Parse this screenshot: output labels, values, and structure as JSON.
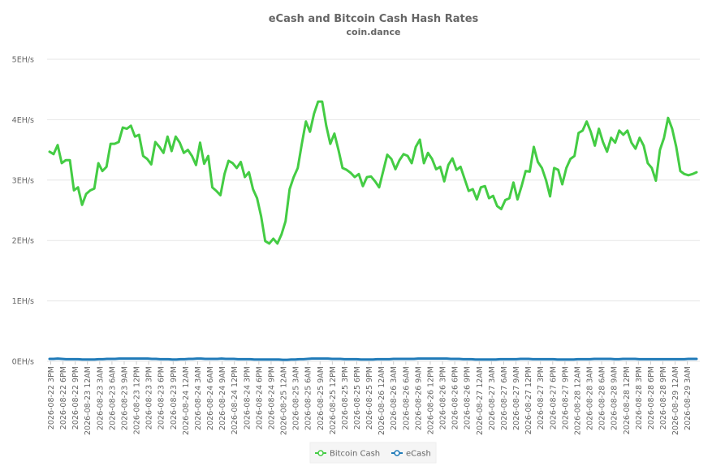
{
  "chart_data": {
    "type": "line",
    "title": "eCash and Bitcoin Cash Hash Rates",
    "subtitle": "coin.dance",
    "ylim": [
      0,
      5
    ],
    "y_ticks": [
      "0EH/s",
      "1EH/s",
      "2EH/s",
      "3EH/s",
      "4EH/s",
      "5EH/s"
    ],
    "grid": true,
    "legend_position": "bottom-center",
    "x_ticks": [
      "2026-08-22 3PM",
      "2026-08-22 6PM",
      "2026-08-22 9PM",
      "2026-08-23 12AM",
      "2026-08-23 3AM",
      "2026-08-23 6AM",
      "2026-08-23 9AM",
      "2026-08-23 12PM",
      "2026-08-23 3PM",
      "2026-08-23 6PM",
      "2026-08-23 9PM",
      "2026-08-24 12AM",
      "2026-08-24 3AM",
      "2026-08-24 6AM",
      "2026-08-24 9AM",
      "2026-08-24 12PM",
      "2026-08-24 3PM",
      "2026-08-24 6PM",
      "2026-08-24 9PM",
      "2026-08-25 12AM",
      "2026-08-25 3AM",
      "2026-08-25 6AM",
      "2026-08-25 9AM",
      "2026-08-25 12PM",
      "2026-08-25 3PM",
      "2026-08-25 6PM",
      "2026-08-25 9PM",
      "2026-08-26 12AM",
      "2026-08-26 3AM",
      "2026-08-26 6AM",
      "2026-08-26 9AM",
      "2026-08-26 12PM",
      "2026-08-26 3PM",
      "2026-08-26 6PM",
      "2026-08-26 9PM",
      "2026-08-27 12AM",
      "2026-08-27 3AM",
      "2026-08-27 6AM",
      "2026-08-27 9AM",
      "2026-08-27 12PM",
      "2026-08-27 3PM",
      "2026-08-27 6PM",
      "2026-08-27 9PM",
      "2026-08-28 12AM",
      "2026-08-28 3AM",
      "2026-08-28 6AM",
      "2026-08-28 9AM",
      "2026-08-28 12PM",
      "2026-08-28 3PM",
      "2026-08-28 6PM",
      "2026-08-28 9PM",
      "2026-08-29 12AM",
      "2026-08-29 3AM"
    ],
    "series": [
      {
        "name": "Bitcoin Cash",
        "color": "#44cc44",
        "values": [
          3.47,
          3.43,
          3.58,
          3.28,
          3.33,
          3.33,
          2.83,
          2.88,
          2.59,
          2.77,
          2.83,
          2.86,
          3.28,
          3.15,
          3.22,
          3.6,
          3.6,
          3.63,
          3.87,
          3.85,
          3.9,
          3.72,
          3.75,
          3.4,
          3.35,
          3.26,
          3.63,
          3.55,
          3.45,
          3.72,
          3.48,
          3.72,
          3.62,
          3.45,
          3.5,
          3.4,
          3.25,
          3.62,
          3.27,
          3.4,
          2.88,
          2.82,
          2.75,
          3.1,
          3.32,
          3.28,
          3.2,
          3.3,
          3.05,
          3.13,
          2.85,
          2.7,
          2.4,
          1.99,
          1.95,
          2.03,
          1.95,
          2.1,
          2.32,
          2.85,
          3.05,
          3.2,
          3.6,
          3.97,
          3.8,
          4.1,
          4.3,
          4.3,
          3.9,
          3.6,
          3.77,
          3.5,
          3.2,
          3.17,
          3.12,
          3.05,
          3.1,
          2.9,
          3.05,
          3.06,
          2.98,
          2.88,
          3.15,
          3.42,
          3.35,
          3.18,
          3.33,
          3.43,
          3.4,
          3.28,
          3.55,
          3.67,
          3.28,
          3.45,
          3.35,
          3.18,
          3.22,
          2.98,
          3.25,
          3.36,
          3.17,
          3.22,
          3.02,
          2.82,
          2.85,
          2.68,
          2.88,
          2.9,
          2.7,
          2.74,
          2.57,
          2.52,
          2.67,
          2.7,
          2.96,
          2.68,
          2.9,
          3.15,
          3.14,
          3.55,
          3.3,
          3.2,
          3.0,
          2.73,
          3.2,
          3.17,
          2.93,
          3.2,
          3.35,
          3.4,
          3.78,
          3.82,
          3.97,
          3.8,
          3.57,
          3.85,
          3.63,
          3.47,
          3.7,
          3.62,
          3.82,
          3.75,
          3.82,
          3.62,
          3.52,
          3.7,
          3.57,
          3.28,
          3.2,
          2.99,
          3.5,
          3.7,
          4.03,
          3.85,
          3.55,
          3.15,
          3.1,
          3.08,
          3.1,
          3.13
        ]
      },
      {
        "name": "eCash",
        "color": "#1f7ab8",
        "values": [
          0.04,
          0.04,
          0.045,
          0.04,
          0.035,
          0.035,
          0.035,
          0.035,
          0.03,
          0.03,
          0.03,
          0.03,
          0.035,
          0.035,
          0.04,
          0.04,
          0.04,
          0.045,
          0.045,
          0.045,
          0.045,
          0.045,
          0.045,
          0.045,
          0.045,
          0.04,
          0.04,
          0.035,
          0.035,
          0.035,
          0.03,
          0.03,
          0.035,
          0.035,
          0.04,
          0.04,
          0.045,
          0.045,
          0.04,
          0.04,
          0.04,
          0.04,
          0.045,
          0.04,
          0.04,
          0.04,
          0.035,
          0.035,
          0.035,
          0.035,
          0.03,
          0.03,
          0.03,
          0.03,
          0.03,
          0.03,
          0.03,
          0.025,
          0.025,
          0.03,
          0.03,
          0.035,
          0.035,
          0.04,
          0.045,
          0.045,
          0.045,
          0.045,
          0.045,
          0.04,
          0.04,
          0.04,
          0.035,
          0.035,
          0.035,
          0.035,
          0.03,
          0.03,
          0.03,
          0.03,
          0.035,
          0.035,
          0.035,
          0.035,
          0.04,
          0.04,
          0.04,
          0.04,
          0.04,
          0.04,
          0.045,
          0.045,
          0.045,
          0.045,
          0.045,
          0.045,
          0.045,
          0.045,
          0.04,
          0.04,
          0.04,
          0.035,
          0.035,
          0.035,
          0.03,
          0.03,
          0.03,
          0.03,
          0.03,
          0.03,
          0.035,
          0.035,
          0.035,
          0.035,
          0.035,
          0.04,
          0.04,
          0.04,
          0.035,
          0.035,
          0.035,
          0.035,
          0.035,
          0.035,
          0.03,
          0.03,
          0.03,
          0.03,
          0.03,
          0.035,
          0.035,
          0.035,
          0.035,
          0.04,
          0.04,
          0.04,
          0.04,
          0.04,
          0.035,
          0.035,
          0.04,
          0.04,
          0.04,
          0.04,
          0.035,
          0.035,
          0.035,
          0.035,
          0.035,
          0.035,
          0.035,
          0.035,
          0.035,
          0.035,
          0.035,
          0.035,
          0.04,
          0.04,
          0.04
        ]
      }
    ]
  }
}
